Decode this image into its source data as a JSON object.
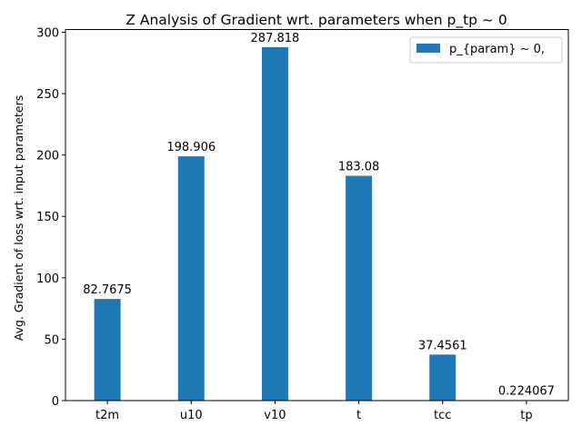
{
  "chart_data": {
    "type": "bar",
    "title": "Z Analysis of Gradient wrt. parameters when p_tp ~ 0",
    "xlabel": "",
    "ylabel": "Avg. Gradient of loss wrt. input parameters",
    "categories": [
      "t2m",
      "u10",
      "v10",
      "t",
      "tcc",
      "tp"
    ],
    "series": [
      {
        "name": "p_{param} ~ 0,",
        "values": [
          82.7675,
          198.906,
          287.818,
          183.08,
          37.4561,
          0.224067
        ],
        "value_labels": [
          "82.7675",
          "198.906",
          "287.818",
          "183.08",
          "37.4561",
          "0.224067"
        ],
        "color": "#1f77b4"
      }
    ],
    "ylim": [
      0,
      302.2
    ],
    "yticks": [
      0,
      50,
      100,
      150,
      200,
      250,
      300
    ],
    "ytick_labels": [
      "0",
      "50",
      "100",
      "150",
      "200",
      "250",
      "300"
    ],
    "grid": false,
    "legend_position": "top-right"
  }
}
